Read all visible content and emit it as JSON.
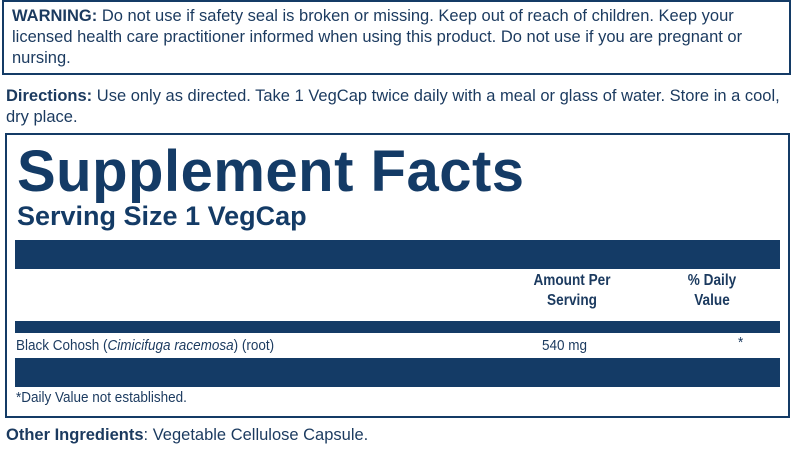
{
  "warning": {
    "label": "WARNING:",
    "text": " Do not use if safety seal is broken or missing. Keep out of reach of children. Keep your licensed health care practitioner informed when using this product. Do not use if you are pregnant or nursing."
  },
  "directions": {
    "label": "Directions:",
    "text": " Use only as directed. Take 1 VegCap twice daily with a meal or glass of water. Store in a cool, dry place."
  },
  "facts": {
    "title": "Supplement Facts",
    "serving_size": "Serving Size 1 VegCap",
    "headers": {
      "amount_line1": "Amount Per",
      "amount_line2": "Serving",
      "dv_line1": "% Daily",
      "dv_line2": "Value"
    },
    "rows": [
      {
        "name": "Black Cohosh (",
        "latin": "Cimicifuga racemosa",
        "suffix": ") (root)",
        "amount": "540 mg",
        "dv": "*"
      }
    ],
    "footnote": "*Daily Value not established."
  },
  "other": {
    "label": "Other Ingredients",
    "text": ": Vegetable Cellulose Capsule."
  },
  "colors": {
    "navy": "#143b66",
    "text": "#1b3a5f"
  }
}
